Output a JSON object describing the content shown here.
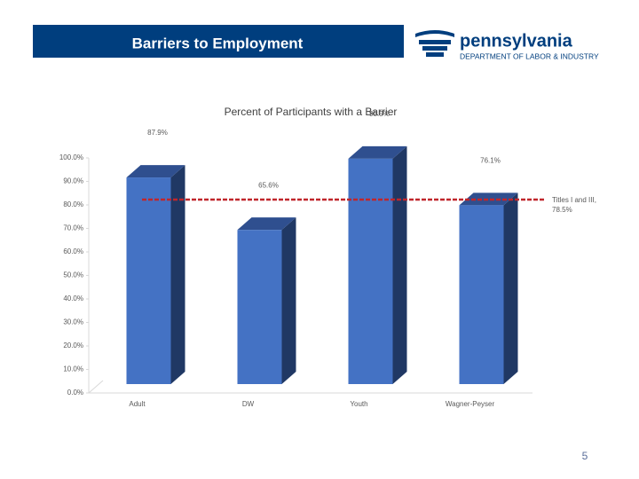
{
  "header": {
    "title": "Barriers to Employment",
    "logo_name": "pennsylvania",
    "logo_subtitle": "DEPARTMENT OF LABOR & INDUSTRY"
  },
  "chart_data": {
    "type": "bar3d",
    "title": "Percent of Participants with a Barrier",
    "categories": [
      "Adult",
      "DW",
      "Youth",
      "Wagner-Peyser"
    ],
    "values": [
      87.9,
      65.6,
      95.9,
      76.1
    ],
    "value_labels": [
      "87.9%",
      "65.6%",
      "95.9%",
      "76.1%"
    ],
    "color": "#4472c4",
    "ylim": [
      0,
      100
    ],
    "yticks": [
      {
        "value": 0,
        "label": "0.0%"
      },
      {
        "value": 10,
        "label": "10.0%"
      },
      {
        "value": 20,
        "label": "20.0%"
      },
      {
        "value": 30,
        "label": "30.0%"
      },
      {
        "value": 40,
        "label": "40.0%"
      },
      {
        "value": 50,
        "label": "50.0%"
      },
      {
        "value": 60,
        "label": "60.0%"
      },
      {
        "value": 70,
        "label": "70.0%"
      },
      {
        "value": 80,
        "label": "80.0%"
      },
      {
        "value": 90,
        "label": "90.0%"
      },
      {
        "value": 100,
        "label": "100.0%"
      }
    ],
    "reference_line": {
      "value": 78.5,
      "label": "Titles I and III, 78.5%",
      "color": "#c0262b"
    }
  },
  "page_number": "5"
}
